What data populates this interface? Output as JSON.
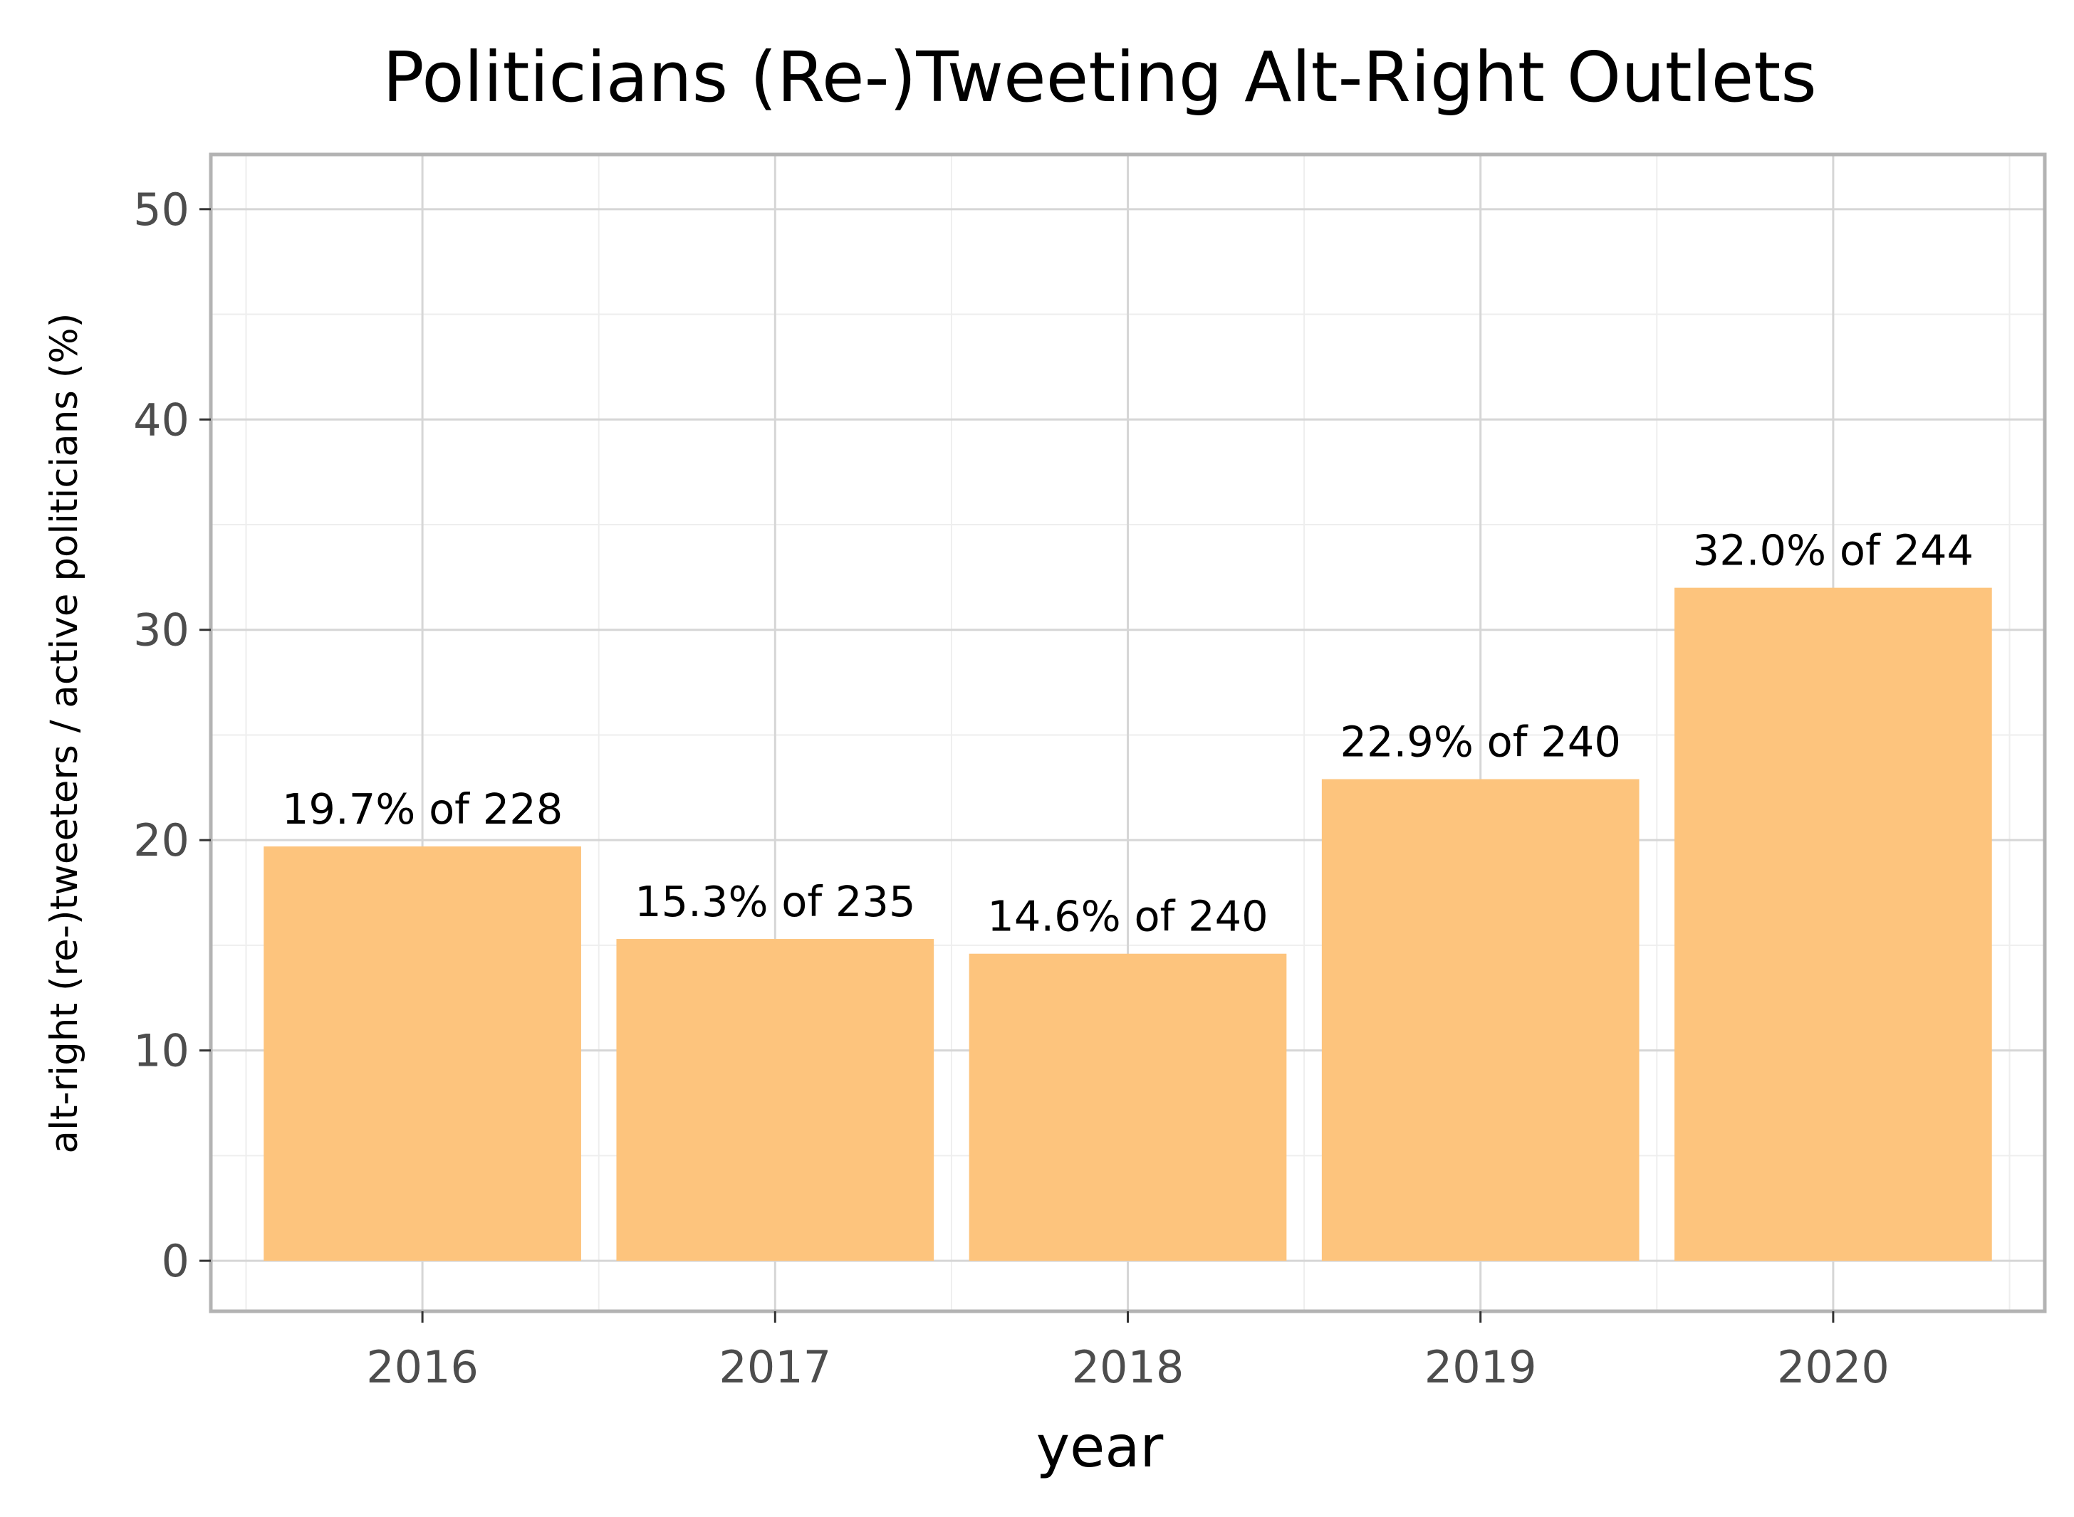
{
  "chart_data": {
    "type": "bar",
    "title": "Politicians (Re-)Tweeting Alt-Right Outlets",
    "xlabel": "year",
    "ylabel": "alt-right (re-)tweeters / active politicians (%)",
    "categories": [
      "2016",
      "2017",
      "2018",
      "2019",
      "2020"
    ],
    "values": [
      19.7,
      15.3,
      14.6,
      22.9,
      32.0
    ],
    "labels": [
      "19.7% of 228",
      "15.3% of 235",
      "14.6% of 240",
      "22.9% of 240",
      "32.0% of 244"
    ],
    "ylim": [
      -2.4,
      52.6
    ],
    "yticks": [
      0,
      10,
      20,
      30,
      40,
      50
    ],
    "yticklabels": [
      "0",
      "10",
      "20",
      "30",
      "40",
      "50"
    ],
    "grid": true,
    "legend": "none",
    "colors": {
      "bar": "#fdc47d",
      "panel_border": "#b3b3b3",
      "grid_major": "#d6d6d6",
      "grid_minor": "#eeeeee",
      "tick_text": "#4d4d4d"
    }
  }
}
